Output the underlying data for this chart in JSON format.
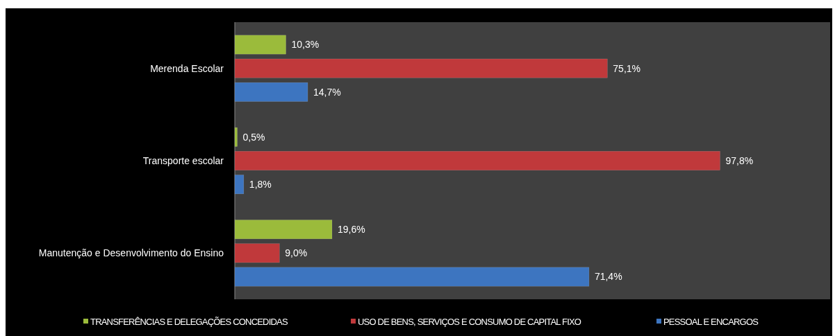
{
  "chart_data": {
    "type": "bar",
    "orientation": "horizontal",
    "categories": [
      "Merenda Escolar",
      "Transporte escolar",
      "Manutenção e Desenvolvimento do Ensino"
    ],
    "series": [
      {
        "name": "TRANSFERÊNCIAS E DELEGAÇÕES CONCEDIDAS",
        "color": "#9bbb3b",
        "values": [
          10.3,
          0.5,
          19.6
        ],
        "value_labels": [
          "10,3%",
          "0,5%",
          "19,6%"
        ]
      },
      {
        "name": "USO DE BENS, SERVIÇOS E CONSUMO DE CAPITAL FIXO",
        "color": "#c0393b",
        "values": [
          75.1,
          97.8,
          9.0
        ],
        "value_labels": [
          "75,1%",
          "97,8%",
          "9,0%"
        ]
      },
      {
        "name": "PESSOAL E ENCARGOS",
        "color": "#3d75c0",
        "values": [
          14.7,
          1.8,
          71.4
        ],
        "value_labels": [
          "14,7%",
          "1,8%",
          "71,4%"
        ]
      }
    ],
    "xlim": [
      0,
      120
    ],
    "tick_labels": "y",
    "legend": "bottom",
    "grid": false
  }
}
